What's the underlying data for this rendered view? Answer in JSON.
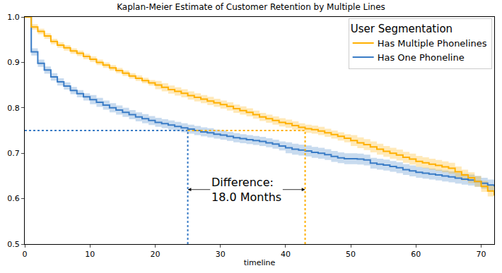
{
  "chart_data": {
    "type": "line",
    "title": "Kaplan-Meier Estimate of Customer Retention by Multiple Lines",
    "x_label": "timeline",
    "legend_title": "User Segmentation",
    "legend": "upper right",
    "grid": false,
    "line_style": "step",
    "xlim": [
      0,
      72
    ],
    "xticks": [
      0,
      10,
      20,
      30,
      40,
      50,
      60,
      70
    ],
    "ylim": [
      0.5,
      1.0
    ],
    "yticks": [
      0.5,
      0.6,
      0.7,
      0.8,
      0.9,
      {
        "value": 1,
        "label": "1.0"
      }
    ],
    "threshold_y": 0.75,
    "annotation": "Difference:\n18.0 Months",
    "x": [
      0,
      1,
      2,
      3,
      4,
      5,
      6,
      7,
      8,
      9,
      10,
      11,
      12,
      13,
      14,
      15,
      16,
      17,
      18,
      19,
      20,
      21,
      22,
      23,
      24,
      25,
      26,
      27,
      28,
      29,
      30,
      31,
      32,
      33,
      34,
      35,
      36,
      37,
      38,
      39,
      40,
      41,
      42,
      43,
      44,
      45,
      46,
      47,
      48,
      49,
      50,
      51,
      52,
      53,
      54,
      55,
      56,
      57,
      58,
      59,
      60,
      61,
      62,
      63,
      64,
      65,
      66,
      67,
      68,
      69,
      70,
      71,
      72
    ],
    "series": [
      {
        "name": "Has One Phoneline",
        "color": "#3a7cc6",
        "threshold_x": 25,
        "values": [
          1.0,
          0.923,
          0.898,
          0.883,
          0.868,
          0.857,
          0.848,
          0.838,
          0.831,
          0.824,
          0.818,
          0.812,
          0.806,
          0.8,
          0.795,
          0.79,
          0.785,
          0.78,
          0.776,
          0.772,
          0.768,
          0.765,
          0.762,
          0.759,
          0.756,
          0.753,
          0.75,
          0.747,
          0.745,
          0.742,
          0.74,
          0.737,
          0.734,
          0.732,
          0.73,
          0.728,
          0.726,
          0.723,
          0.72,
          0.716,
          0.712,
          0.709,
          0.707,
          0.705,
          0.702,
          0.7,
          0.697,
          0.693,
          0.69,
          0.688,
          0.688,
          0.687,
          0.685,
          0.678,
          0.676,
          0.674,
          0.671,
          0.668,
          0.664,
          0.661,
          0.658,
          0.656,
          0.654,
          0.652,
          0.65,
          0.648,
          0.645,
          0.643,
          0.641,
          0.638,
          0.634,
          0.63,
          0.627
        ],
        "ci_lower": [
          1.0,
          0.915,
          0.89,
          0.875,
          0.86,
          0.849,
          0.84,
          0.83,
          0.823,
          0.816,
          0.808,
          0.802,
          0.796,
          0.79,
          0.785,
          0.78,
          0.775,
          0.77,
          0.766,
          0.762,
          0.758,
          0.755,
          0.752,
          0.749,
          0.746,
          0.743,
          0.74,
          0.737,
          0.735,
          0.732,
          0.73,
          0.727,
          0.724,
          0.722,
          0.72,
          0.718,
          0.716,
          0.713,
          0.71,
          0.706,
          0.7,
          0.697,
          0.695,
          0.693,
          0.69,
          0.688,
          0.685,
          0.681,
          0.678,
          0.676,
          0.676,
          0.675,
          0.673,
          0.666,
          0.664,
          0.662,
          0.659,
          0.656,
          0.652,
          0.649,
          0.646,
          0.644,
          0.642,
          0.64,
          0.638,
          0.636,
          0.633,
          0.631,
          0.629,
          0.626,
          0.622,
          0.618,
          0.615
        ],
        "ci_upper": [
          1.0,
          0.931,
          0.906,
          0.891,
          0.876,
          0.865,
          0.856,
          0.846,
          0.839,
          0.832,
          0.828,
          0.822,
          0.816,
          0.81,
          0.805,
          0.8,
          0.795,
          0.79,
          0.786,
          0.782,
          0.778,
          0.775,
          0.772,
          0.769,
          0.766,
          0.763,
          0.76,
          0.757,
          0.755,
          0.752,
          0.75,
          0.747,
          0.744,
          0.742,
          0.74,
          0.738,
          0.736,
          0.733,
          0.73,
          0.726,
          0.724,
          0.721,
          0.719,
          0.717,
          0.714,
          0.712,
          0.709,
          0.705,
          0.702,
          0.7,
          0.7,
          0.699,
          0.697,
          0.69,
          0.688,
          0.686,
          0.683,
          0.68,
          0.676,
          0.673,
          0.67,
          0.668,
          0.666,
          0.664,
          0.662,
          0.66,
          0.657,
          0.655,
          0.653,
          0.65,
          0.646,
          0.642,
          0.639
        ]
      },
      {
        "name": "Has Multiple Phonelines",
        "color": "#ffb000",
        "threshold_x": 43,
        "values": [
          1.0,
          0.978,
          0.968,
          0.958,
          0.946,
          0.938,
          0.932,
          0.925,
          0.92,
          0.913,
          0.907,
          0.9,
          0.894,
          0.888,
          0.882,
          0.876,
          0.87,
          0.865,
          0.86,
          0.855,
          0.85,
          0.845,
          0.84,
          0.836,
          0.832,
          0.827,
          0.823,
          0.819,
          0.815,
          0.811,
          0.807,
          0.803,
          0.798,
          0.794,
          0.79,
          0.785,
          0.78,
          0.776,
          0.772,
          0.768,
          0.765,
          0.761,
          0.757,
          0.754,
          0.752,
          0.749,
          0.745,
          0.741,
          0.737,
          0.733,
          0.728,
          0.723,
          0.719,
          0.714,
          0.709,
          0.704,
          0.7,
          0.696,
          0.691,
          0.687,
          0.682,
          0.679,
          0.676,
          0.673,
          0.67,
          0.667,
          0.659,
          0.652,
          0.646,
          0.638,
          0.627,
          0.617,
          0.607
        ],
        "ci_lower": [
          1.0,
          0.972,
          0.962,
          0.952,
          0.94,
          0.932,
          0.926,
          0.919,
          0.914,
          0.907,
          0.901,
          0.894,
          0.888,
          0.882,
          0.876,
          0.87,
          0.864,
          0.859,
          0.854,
          0.849,
          0.841,
          0.836,
          0.831,
          0.827,
          0.823,
          0.818,
          0.814,
          0.81,
          0.806,
          0.802,
          0.798,
          0.794,
          0.789,
          0.785,
          0.781,
          0.776,
          0.771,
          0.767,
          0.763,
          0.759,
          0.756,
          0.752,
          0.748,
          0.745,
          0.743,
          0.74,
          0.736,
          0.732,
          0.728,
          0.724,
          0.716,
          0.711,
          0.707,
          0.702,
          0.697,
          0.692,
          0.688,
          0.684,
          0.679,
          0.675,
          0.67,
          0.667,
          0.664,
          0.661,
          0.658,
          0.655,
          0.647,
          0.64,
          0.634,
          0.626,
          0.615,
          0.605,
          0.595
        ],
        "ci_upper": [
          1.0,
          0.984,
          0.974,
          0.964,
          0.952,
          0.944,
          0.938,
          0.931,
          0.926,
          0.919,
          0.913,
          0.906,
          0.9,
          0.894,
          0.888,
          0.882,
          0.876,
          0.871,
          0.866,
          0.861,
          0.859,
          0.854,
          0.849,
          0.845,
          0.841,
          0.836,
          0.832,
          0.828,
          0.824,
          0.82,
          0.816,
          0.812,
          0.807,
          0.803,
          0.799,
          0.794,
          0.789,
          0.785,
          0.781,
          0.777,
          0.774,
          0.77,
          0.766,
          0.763,
          0.761,
          0.758,
          0.754,
          0.75,
          0.746,
          0.742,
          0.74,
          0.735,
          0.731,
          0.726,
          0.721,
          0.716,
          0.712,
          0.708,
          0.703,
          0.699,
          0.694,
          0.691,
          0.688,
          0.685,
          0.682,
          0.679,
          0.671,
          0.664,
          0.658,
          0.65,
          0.639,
          0.629,
          0.619
        ]
      }
    ]
  }
}
